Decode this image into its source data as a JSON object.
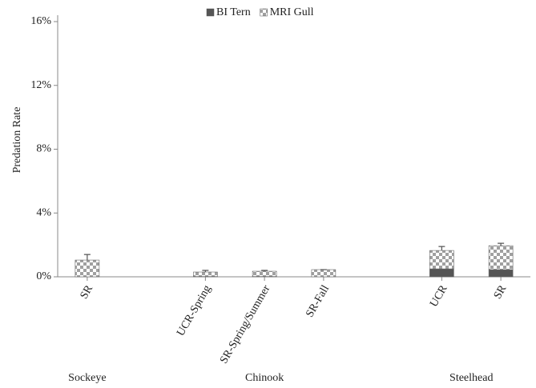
{
  "chart_data": {
    "type": "stacked_bar",
    "ylabel": "Predation Rate",
    "categories": [
      "SR",
      null,
      "UCR-Spring",
      "SR-Spring/Summer",
      "SR-Fall",
      null,
      "UCR",
      "SR"
    ],
    "groups": [
      "Sockeye",
      "Chinook",
      "Steelhead"
    ],
    "series": [
      {
        "name": "BI Tern",
        "color": "#555555",
        "values": [
          0,
          null,
          0.02,
          0.02,
          0,
          null,
          0.5,
          0.45
        ]
      },
      {
        "name": "MRI Gull",
        "color": "#a0a0a0",
        "pattern": "checker",
        "values": [
          1.05,
          null,
          0.28,
          0.33,
          0.45,
          null,
          1.15,
          1.5
        ],
        "errors": [
          0.35,
          null,
          0.1,
          0.05,
          0,
          null,
          0.25,
          0.15
        ]
      }
    ],
    "ylim": [
      0,
      16
    ],
    "yticks": [
      {
        "value": 0,
        "label": "0%"
      },
      {
        "value": 4,
        "label": "4%"
      },
      {
        "value": 8,
        "label": "8%"
      },
      {
        "value": 12,
        "label": "12%"
      },
      {
        "value": 16,
        "label": "16%"
      }
    ],
    "legend": "top"
  }
}
